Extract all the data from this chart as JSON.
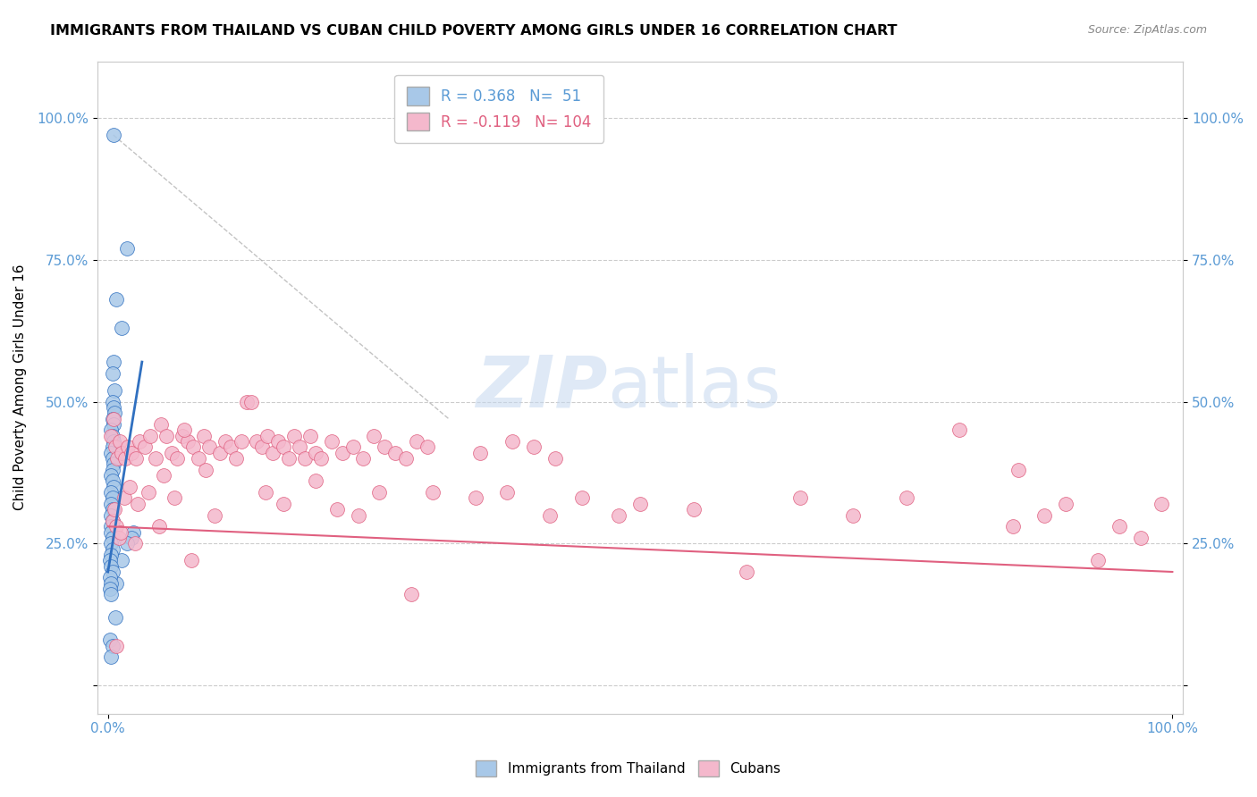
{
  "title": "IMMIGRANTS FROM THAILAND VS CUBAN CHILD POVERTY AMONG GIRLS UNDER 16 CORRELATION CHART",
  "source": "Source: ZipAtlas.com",
  "ylabel": "Child Poverty Among Girls Under 16",
  "legend_label1": "Immigrants from Thailand",
  "legend_label2": "Cubans",
  "R1": 0.368,
  "N1": 51,
  "R2": -0.119,
  "N2": 104,
  "color_blue": "#a8c8e8",
  "color_pink": "#f4b8cc",
  "color_line_blue": "#3070c0",
  "color_line_pink": "#e06080",
  "scatter_blue": [
    [
      0.5,
      97
    ],
    [
      1.8,
      77
    ],
    [
      0.8,
      68
    ],
    [
      1.3,
      63
    ],
    [
      0.5,
      57
    ],
    [
      0.4,
      55
    ],
    [
      0.6,
      52
    ],
    [
      0.4,
      50
    ],
    [
      0.5,
      49
    ],
    [
      0.6,
      48
    ],
    [
      0.4,
      47
    ],
    [
      0.5,
      46
    ],
    [
      0.3,
      45
    ],
    [
      0.4,
      44
    ],
    [
      0.5,
      43
    ],
    [
      0.4,
      42
    ],
    [
      0.3,
      41
    ],
    [
      0.4,
      40
    ],
    [
      0.5,
      39
    ],
    [
      0.4,
      38
    ],
    [
      0.3,
      37
    ],
    [
      0.4,
      36
    ],
    [
      0.5,
      35
    ],
    [
      0.3,
      34
    ],
    [
      0.4,
      33
    ],
    [
      0.3,
      32
    ],
    [
      0.4,
      31
    ],
    [
      0.3,
      30
    ],
    [
      0.4,
      29
    ],
    [
      0.3,
      28
    ],
    [
      2.4,
      27
    ],
    [
      2.2,
      26
    ],
    [
      1.8,
      25
    ],
    [
      1.3,
      22
    ],
    [
      0.8,
      18
    ],
    [
      0.7,
      12
    ],
    [
      0.3,
      27
    ],
    [
      0.4,
      26
    ],
    [
      0.3,
      25
    ],
    [
      0.4,
      24
    ],
    [
      0.3,
      23
    ],
    [
      0.2,
      22
    ],
    [
      0.3,
      21
    ],
    [
      0.4,
      20
    ],
    [
      0.2,
      19
    ],
    [
      0.3,
      18
    ],
    [
      0.2,
      17
    ],
    [
      0.3,
      16
    ],
    [
      0.2,
      8
    ],
    [
      0.4,
      7
    ],
    [
      0.3,
      5
    ]
  ],
  "scatter_pink": [
    [
      0.3,
      44
    ],
    [
      0.5,
      47
    ],
    [
      0.7,
      42
    ],
    [
      0.9,
      40
    ],
    [
      1.1,
      43
    ],
    [
      1.3,
      41
    ],
    [
      1.6,
      40
    ],
    [
      1.9,
      42
    ],
    [
      2.2,
      41
    ],
    [
      2.6,
      40
    ],
    [
      3.0,
      43
    ],
    [
      3.5,
      42
    ],
    [
      4.0,
      44
    ],
    [
      4.5,
      40
    ],
    [
      5.0,
      46
    ],
    [
      5.5,
      44
    ],
    [
      6.0,
      41
    ],
    [
      6.5,
      40
    ],
    [
      7.0,
      44
    ],
    [
      7.5,
      43
    ],
    [
      8.0,
      42
    ],
    [
      8.5,
      40
    ],
    [
      9.0,
      44
    ],
    [
      9.5,
      42
    ],
    [
      10.5,
      41
    ],
    [
      11.0,
      43
    ],
    [
      11.5,
      42
    ],
    [
      12.0,
      40
    ],
    [
      13.0,
      50
    ],
    [
      13.5,
      50
    ],
    [
      14.0,
      43
    ],
    [
      14.5,
      42
    ],
    [
      15.0,
      44
    ],
    [
      15.5,
      41
    ],
    [
      16.0,
      43
    ],
    [
      16.5,
      42
    ],
    [
      17.0,
      40
    ],
    [
      17.5,
      44
    ],
    [
      18.0,
      42
    ],
    [
      18.5,
      40
    ],
    [
      19.0,
      44
    ],
    [
      19.5,
      41
    ],
    [
      20.0,
      40
    ],
    [
      21.0,
      43
    ],
    [
      22.0,
      41
    ],
    [
      23.0,
      42
    ],
    [
      24.0,
      40
    ],
    [
      25.0,
      44
    ],
    [
      26.0,
      42
    ],
    [
      27.0,
      41
    ],
    [
      28.0,
      40
    ],
    [
      29.0,
      43
    ],
    [
      30.0,
      42
    ],
    [
      35.0,
      41
    ],
    [
      38.0,
      43
    ],
    [
      40.0,
      42
    ],
    [
      42.0,
      40
    ],
    [
      0.4,
      29
    ],
    [
      0.6,
      31
    ],
    [
      0.8,
      28
    ],
    [
      1.5,
      33
    ],
    [
      2.0,
      35
    ],
    [
      2.8,
      32
    ],
    [
      3.8,
      34
    ],
    [
      5.2,
      37
    ],
    [
      6.2,
      33
    ],
    [
      7.2,
      45
    ],
    [
      9.2,
      38
    ],
    [
      10.0,
      30
    ],
    [
      12.5,
      43
    ],
    [
      14.8,
      34
    ],
    [
      16.5,
      32
    ],
    [
      19.5,
      36
    ],
    [
      21.5,
      31
    ],
    [
      23.5,
      30
    ],
    [
      25.5,
      34
    ],
    [
      28.5,
      16
    ],
    [
      30.5,
      34
    ],
    [
      34.5,
      33
    ],
    [
      37.5,
      34
    ],
    [
      41.5,
      30
    ],
    [
      44.5,
      33
    ],
    [
      48.0,
      30
    ],
    [
      50.0,
      32
    ],
    [
      55.0,
      31
    ],
    [
      60.0,
      20
    ],
    [
      65.0,
      33
    ],
    [
      70.0,
      30
    ],
    [
      75.0,
      33
    ],
    [
      80.0,
      45
    ],
    [
      85.0,
      28
    ],
    [
      85.5,
      38
    ],
    [
      88.0,
      30
    ],
    [
      90.0,
      32
    ],
    [
      93.0,
      22
    ],
    [
      95.0,
      28
    ],
    [
      97.0,
      26
    ],
    [
      99.0,
      32
    ],
    [
      1.0,
      26
    ],
    [
      1.2,
      27
    ],
    [
      2.5,
      25
    ],
    [
      4.8,
      28
    ],
    [
      7.8,
      22
    ],
    [
      0.8,
      7
    ]
  ],
  "blue_line_x": [
    0.0,
    3.2
  ],
  "blue_line_y": [
    20.0,
    57.0
  ],
  "pink_line_x": [
    0.0,
    100.0
  ],
  "pink_line_y": [
    28.0,
    20.0
  ],
  "dash_line_x": [
    0.5,
    32.0
  ],
  "dash_line_y": [
    97.0,
    47.0
  ],
  "xlim": [
    -1,
    101
  ],
  "ylim": [
    -5,
    110
  ],
  "yticks": [
    0,
    25,
    50,
    75,
    100
  ],
  "xticks": [
    0,
    100
  ],
  "ytick_labels": [
    "",
    "25.0%",
    "50.0%",
    "75.0%",
    "100.0%"
  ],
  "xtick_labels": [
    "0.0%",
    "100.0%"
  ]
}
